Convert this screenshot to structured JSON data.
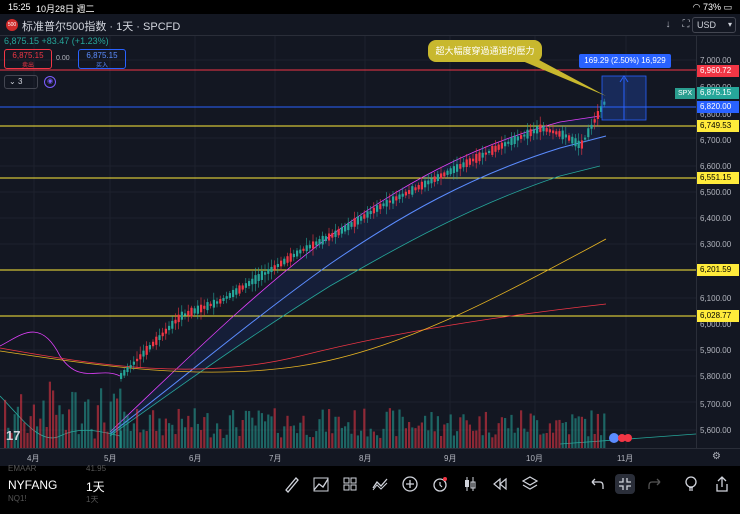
{
  "status": {
    "time": "15:25",
    "date": "10月28日 週二",
    "battery": "73%"
  },
  "header": {
    "symbol_badge": "500",
    "title": "标准普尔500指数 · 1天 · SPCFD",
    "currency": "USD"
  },
  "legend": {
    "price_line": "6,875.15 +83.47 (+1.23%)",
    "sell_price": "6,875.15",
    "sell_label": "卖出",
    "spread": "0.00",
    "buy_price": "6,875.15",
    "buy_label": "买入",
    "indicator_count": "3"
  },
  "annotations": {
    "callout_text": "超大幅度穿過通道的壓力",
    "measure_text": "169.29 (2.50%) 16,929",
    "spx_tag": "SPX"
  },
  "price_axis": {
    "labels": [
      "7,000.00",
      "6,900.00",
      "6,800.00",
      "6,700.00",
      "6,600.00",
      "6,500.00",
      "6,400.00",
      "6,300.00",
      "6,100.00",
      "6,000.00",
      "5,900.00",
      "5,800.00",
      "5,700.00",
      "5,600.00"
    ],
    "tags": {
      "red": "6,960.72",
      "teal": "6,875.15",
      "blue": "6,820.00",
      "y1": "6,749.53",
      "y2": "6,551.15",
      "y3": "6,201.59",
      "y4": "6,028.77"
    }
  },
  "time_axis": [
    "4月",
    "5月",
    "6月",
    "7月",
    "8月",
    "9月",
    "10月",
    "11月"
  ],
  "toolbar": {
    "symbol": "NYFANG",
    "interval": "1天",
    "ghost_symbol_above": "EMAAR",
    "ghost_interval_above": "41.95",
    "ghost_symbol_below": "NQ1!",
    "ghost_interval_below": "1天"
  },
  "colors": {
    "up": "#26a69a",
    "down": "#f23645",
    "yellow_line": "#ffeb3b",
    "red_line": "#f23645",
    "blue_line": "#2962ff",
    "background": "#131722"
  }
}
